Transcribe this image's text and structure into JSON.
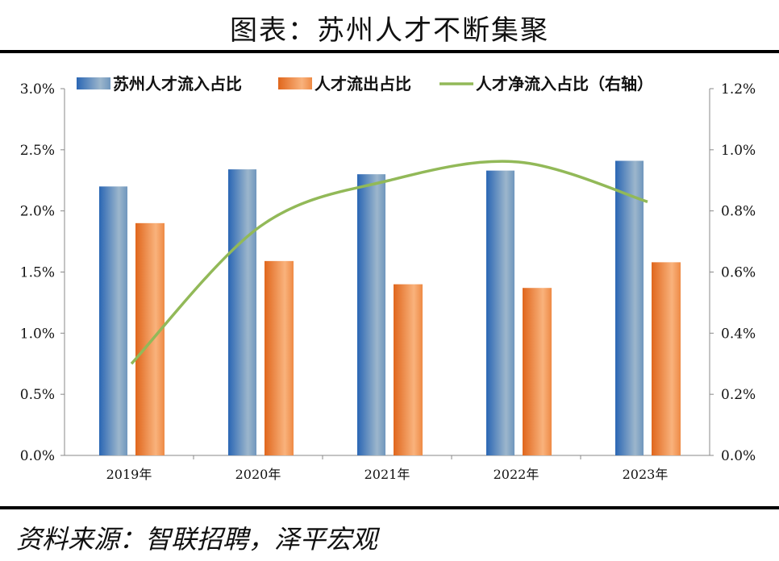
{
  "title": "图表：苏州人才不断集聚",
  "source": "资料来源：智联招聘，泽平宏观",
  "chart_data": {
    "type": "bar+line",
    "categories": [
      "2019年",
      "2020年",
      "2021年",
      "2022年",
      "2023年"
    ],
    "series": [
      {
        "name": "苏州人才流入占比",
        "type": "bar",
        "axis": "left",
        "color": "#3a74b8",
        "values": [
          2.2,
          2.34,
          2.3,
          2.33,
          2.41
        ]
      },
      {
        "name": "人才流出占比",
        "type": "bar",
        "axis": "left",
        "color": "#e8762a",
        "values": [
          1.9,
          1.59,
          1.4,
          1.37,
          1.58
        ]
      },
      {
        "name": "人才净流入占比（右轴",
        "type": "line",
        "axis": "right",
        "color": "#92b958",
        "values": [
          0.3,
          0.75,
          0.9,
          0.96,
          0.83
        ]
      }
    ],
    "left_axis": {
      "ylim": [
        0,
        3.0
      ],
      "ticks": [
        "0.0%",
        "0.5%",
        "1.0%",
        "1.5%",
        "2.0%",
        "2.5%",
        "3.0%"
      ]
    },
    "right_axis": {
      "ylim": [
        0,
        1.2
      ],
      "ticks": [
        "0.0%",
        "0.2%",
        "0.4%",
        "0.6%",
        "0.8%",
        "1.0%",
        "1.2%"
      ]
    },
    "legend": "top",
    "grid": false
  }
}
